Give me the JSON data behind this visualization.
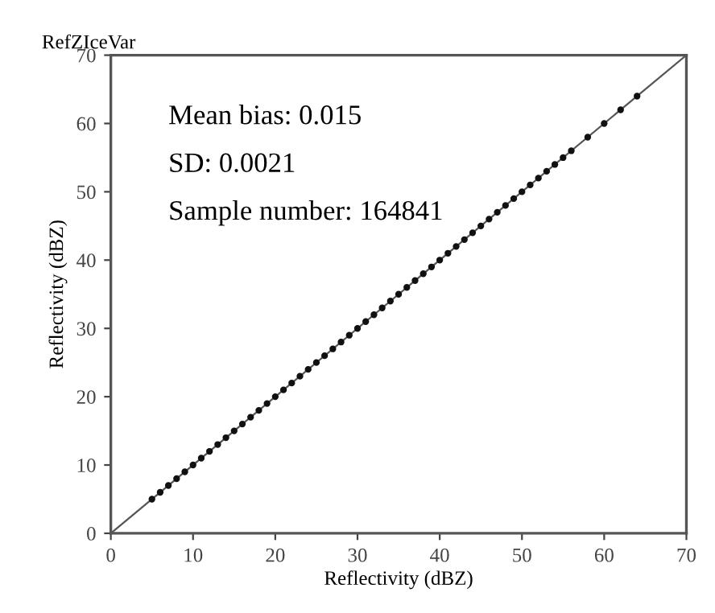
{
  "chart_data": {
    "type": "scatter",
    "title": "RefZIceVar",
    "xlabel": "Reflectivity (dBZ)",
    "ylabel": "Reflectivity (dBZ)",
    "xlim": [
      0,
      70
    ],
    "ylim": [
      0,
      70
    ],
    "xticks": [
      0,
      10,
      20,
      30,
      40,
      50,
      60,
      70
    ],
    "yticks": [
      0,
      10,
      20,
      30,
      40,
      50,
      60,
      70
    ],
    "grid": false,
    "marker": "circle",
    "annotations": [
      "Mean bias: 0.015",
      "SD: 0.0021",
      "Sample number: 164841"
    ],
    "series": [
      {
        "type": "line",
        "marker": "none",
        "color": "#555555",
        "x": [
          0,
          70
        ],
        "values": [
          0,
          70
        ]
      },
      {
        "color": "#111111",
        "x": [
          5,
          6,
          7,
          8,
          9,
          10,
          11,
          12,
          13,
          14,
          15,
          16,
          17,
          18,
          19,
          20,
          21,
          22,
          23,
          24,
          25,
          26,
          27,
          28,
          29,
          30,
          31,
          32,
          33,
          34,
          35,
          36,
          37,
          38,
          39,
          40,
          41,
          42,
          43,
          44,
          45,
          46,
          47,
          48,
          49,
          50,
          51,
          52,
          53,
          54,
          55,
          56,
          58,
          60,
          62,
          64
        ],
        "values": [
          5,
          6,
          7,
          8,
          9,
          10,
          11,
          12,
          13,
          14,
          15,
          16,
          17,
          18,
          19,
          20,
          21,
          22,
          23,
          24,
          25,
          26,
          27,
          28,
          29,
          30,
          31,
          32,
          33,
          34,
          35,
          36,
          37,
          38,
          39,
          40,
          41,
          42,
          43,
          44,
          45,
          46,
          47,
          48,
          49,
          50,
          51,
          52,
          53,
          54,
          55,
          56,
          58,
          60,
          62,
          64
        ]
      }
    ]
  }
}
